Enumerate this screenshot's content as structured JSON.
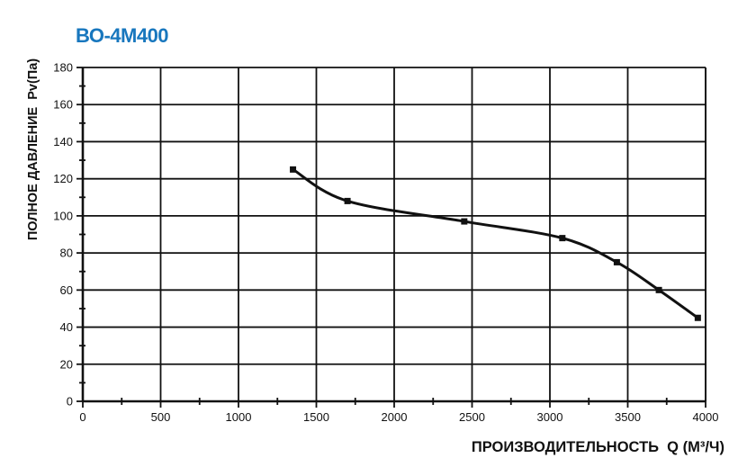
{
  "title": {
    "text": "ВО-4М400",
    "color": "#1877be"
  },
  "chart_data": {
    "type": "line",
    "title": "ВО-4М400",
    "xlabel": "ПРОИЗВОДИТЕЛЬНОСТЬ  Q (М³/Ч)",
    "ylabel": "ПОЛНОЕ ДАВЛЕНИЕ  Pv(Па)",
    "series": [
      {
        "name": "ВО-4М400",
        "x": [
          1350,
          1700,
          2450,
          3080,
          3430,
          3700,
          3950
        ],
        "y": [
          125,
          108,
          97,
          88,
          75,
          60,
          45
        ]
      }
    ],
    "xlim": [
      0,
      4000
    ],
    "ylim": [
      0,
      180
    ],
    "x_ticks": [
      0,
      500,
      1000,
      1500,
      2000,
      2500,
      3000,
      3500,
      4000
    ],
    "y_ticks": [
      0,
      20,
      40,
      60,
      80,
      100,
      120,
      140,
      160,
      180
    ],
    "x_minor_step": 250,
    "y_minor_step": 10,
    "grid": true,
    "legend": false,
    "marker": "square",
    "line_color": "#111111",
    "axis_color": "#111111",
    "tick_label_color": "#111111"
  }
}
